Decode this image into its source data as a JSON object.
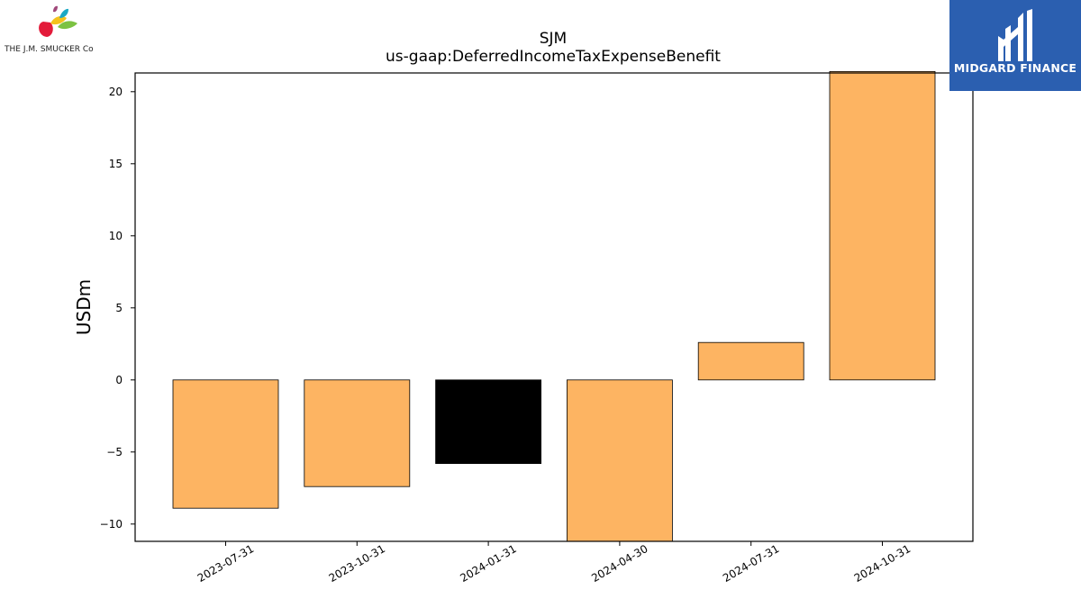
{
  "branding": {
    "company_logo_text": "THE J.M. SMUCKER Co",
    "publisher_logo_text": "MIDGARD FINANCE",
    "publisher_color": "#2b5fb0"
  },
  "chart_data": {
    "type": "bar",
    "title": "SJM",
    "subtitle": "us-gaap:DeferredIncomeTaxExpenseBenefit",
    "xlabel": "",
    "ylabel": "USDm",
    "categories": [
      "2023-07-31",
      "2023-10-31",
      "2024-01-31",
      "2024-04-30",
      "2024-07-31",
      "2024-10-31"
    ],
    "values": [
      -8.9,
      -7.4,
      -5.8,
      -11.2,
      2.6,
      21.4
    ],
    "bar_colors": [
      "#fdb462",
      "#fdb462",
      "#000000",
      "#fdb462",
      "#fdb462",
      "#fdb462"
    ],
    "ylim": [
      -11.2,
      21.3
    ],
    "yticks": [
      -10,
      -5,
      0,
      5,
      10,
      15,
      20
    ],
    "ytick_labels": [
      "−10",
      "−5",
      "0",
      "5",
      "10",
      "15",
      "20"
    ],
    "grid": false,
    "legend": "none"
  }
}
